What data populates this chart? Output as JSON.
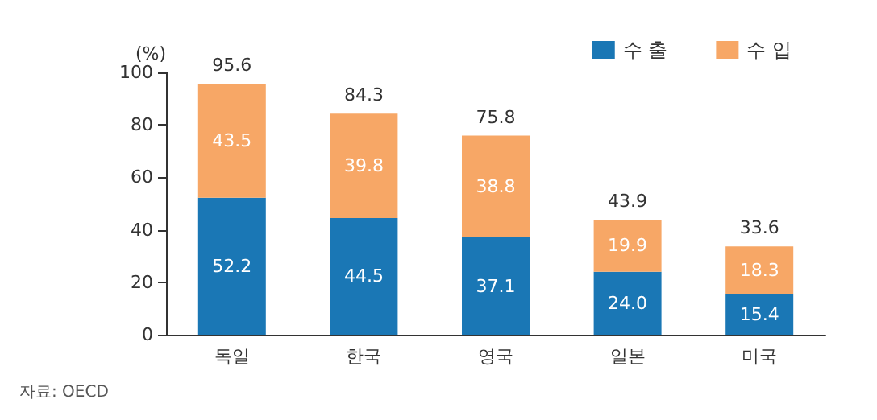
{
  "chart_data": {
    "type": "bar",
    "stacked": true,
    "categories": [
      "독일",
      "한국",
      "영국",
      "일본",
      "미국"
    ],
    "series": [
      {
        "name": "수 출",
        "color": "#1a77b5",
        "values": [
          52.2,
          44.5,
          37.1,
          24.0,
          15.4
        ],
        "value_labels": [
          "52.2",
          "44.5",
          "37.1",
          "24.0",
          "15.4"
        ]
      },
      {
        "name": "수 입",
        "color": "#f7a766",
        "values": [
          43.5,
          39.8,
          38.8,
          19.9,
          18.3
        ],
        "value_labels": [
          "43.5",
          "39.8",
          "38.8",
          "19.9",
          "18.3"
        ]
      }
    ],
    "totals": [
      "95.6",
      "84.3",
      "75.8",
      "43.9",
      "33.6"
    ],
    "ylabel": "(%)",
    "ylim": [
      0,
      100
    ],
    "yticks": [
      0,
      20,
      40,
      60,
      80,
      100
    ],
    "grid": false,
    "legend": "top right",
    "annotations": [
      "자료: OECD"
    ]
  }
}
